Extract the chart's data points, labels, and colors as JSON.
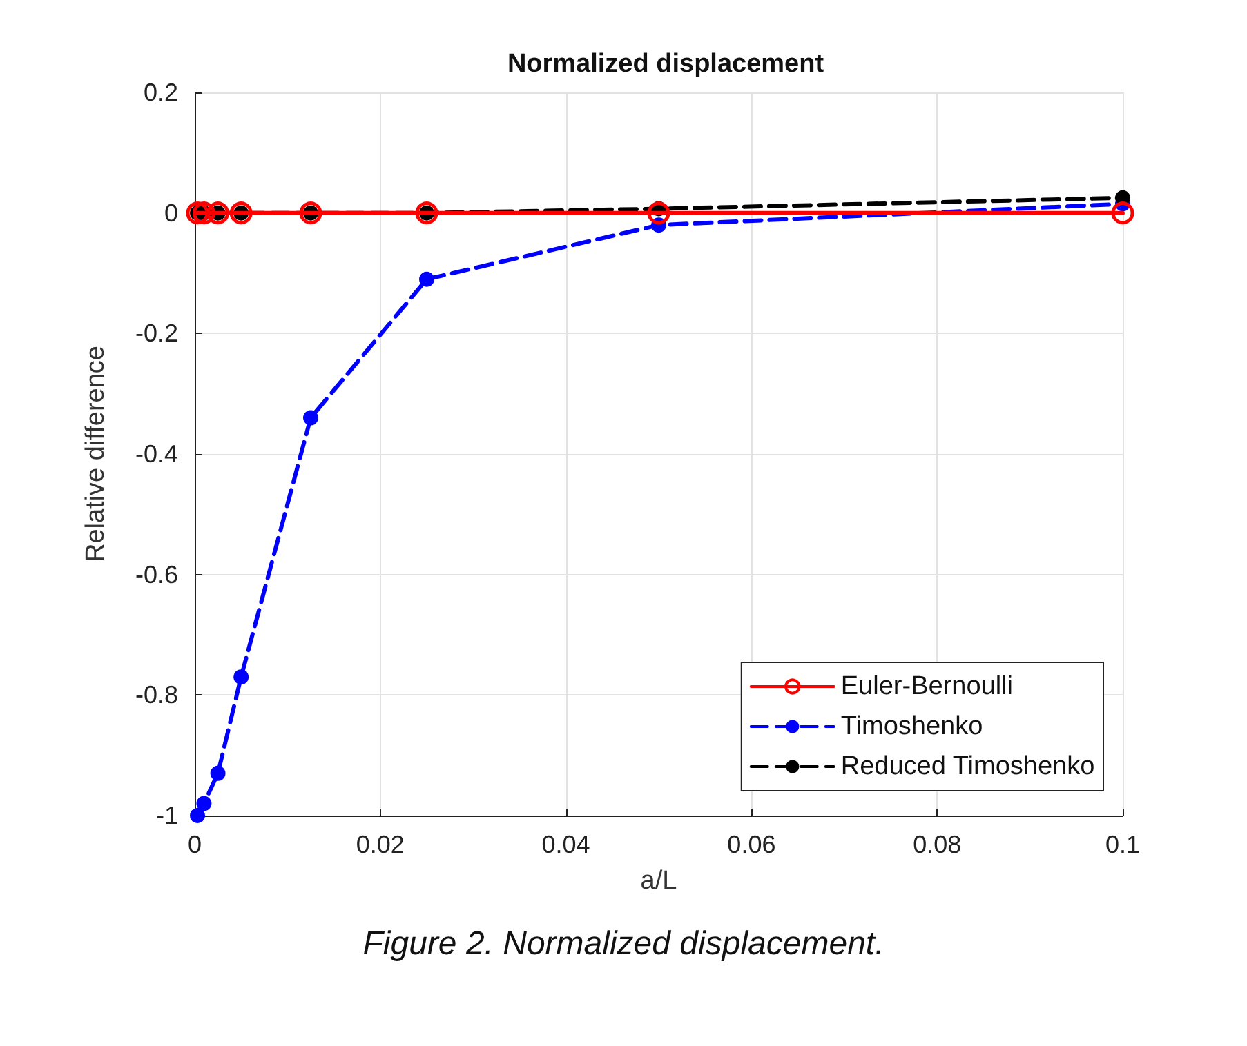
{
  "chart_data": {
    "type": "line",
    "title": "Normalized displacement",
    "xlabel": "a/L",
    "ylabel": "Relative difference",
    "annotations": [
      "Figure 2. Normalized displacement."
    ],
    "x": [
      0.0003,
      0.001,
      0.0025,
      0.005,
      0.0125,
      0.025,
      0.05,
      0.1
    ],
    "series": [
      {
        "name": "Euler-Bernoulli",
        "color": "#ff0000",
        "values": [
          0,
          0,
          0,
          0,
          0,
          0,
          0,
          0
        ],
        "line_style": "solid"
      },
      {
        "name": "Timoshenko",
        "color": "#0000ff",
        "values": [
          -1.0,
          -0.98,
          -0.93,
          -0.77,
          -0.34,
          -0.11,
          -0.02,
          0.015
        ],
        "line_style": "dashed"
      },
      {
        "name": "Reduced Timoshenko",
        "color": "#000000",
        "values": [
          0,
          0,
          0,
          0,
          0,
          0,
          0.007,
          0.025
        ],
        "line_style": "dashed"
      }
    ],
    "xlim": [
      0,
      0.1
    ],
    "xticks": [
      0,
      0.02,
      0.04,
      0.06,
      0.08,
      0.1
    ],
    "ylim": [
      -1,
      0.2
    ],
    "yticks": [
      -1,
      -0.8,
      -0.6,
      -0.4,
      -0.2,
      0,
      0.2
    ],
    "grid": true,
    "legend": "bottom right",
    "marker": "circle"
  }
}
